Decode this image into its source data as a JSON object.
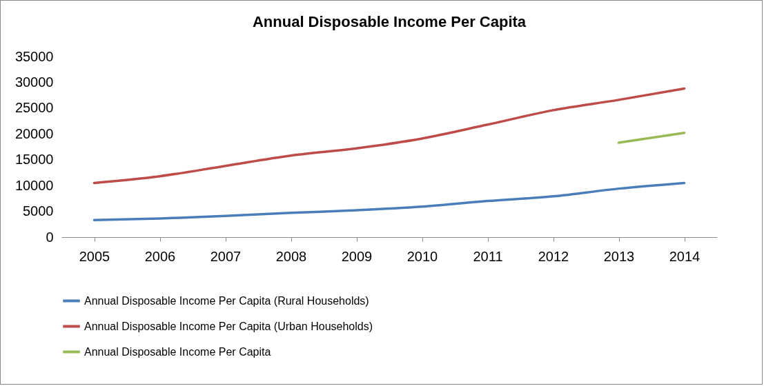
{
  "chart_data": {
    "type": "line",
    "title": "Annual Disposable Income Per Capita",
    "categories": [
      "2005",
      "2006",
      "2007",
      "2008",
      "2009",
      "2010",
      "2011",
      "2012",
      "2013",
      "2014"
    ],
    "series": [
      {
        "name": "Annual Disposable Income Per Capita (Rural Households)",
        "color": "#4a7ebb",
        "values": [
          3300,
          3600,
          4100,
          4700,
          5200,
          5900,
          7000,
          7900,
          9400,
          10500
        ]
      },
      {
        "name": "Annual Disposable Income Per Capita (Urban Households)",
        "color": "#be4b48",
        "values": [
          10500,
          11800,
          13800,
          15800,
          17200,
          19100,
          21800,
          24600,
          26600,
          28800
        ]
      },
      {
        "name": "Annual Disposable Income Per Capita",
        "color": "#98b954",
        "values": [
          null,
          null,
          null,
          null,
          null,
          null,
          null,
          null,
          18300,
          20200
        ]
      }
    ],
    "ylim": [
      0,
      35000
    ],
    "yticks": [
      0,
      5000,
      10000,
      15000,
      20000,
      25000,
      30000,
      35000
    ],
    "grid": false,
    "legend": "bottom",
    "marker": "none",
    "line_style": "solid"
  }
}
